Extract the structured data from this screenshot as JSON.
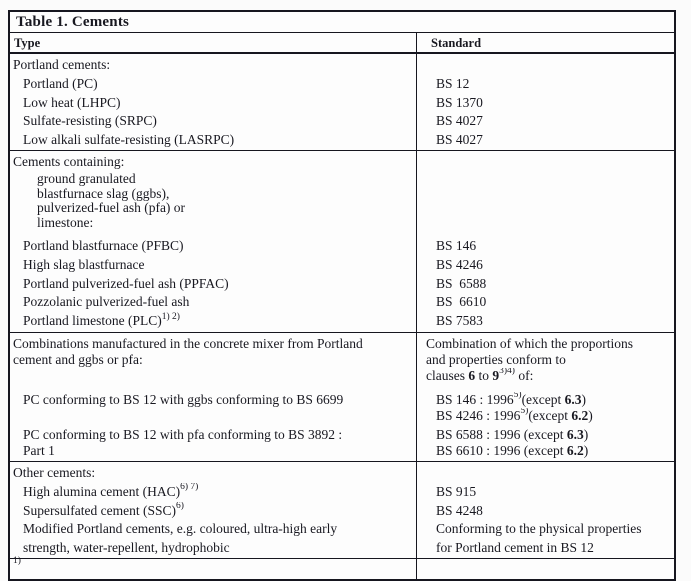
{
  "title": "Table 1. Cements",
  "columns": {
    "type": "Type",
    "standard": "Standard"
  },
  "footnote_marker": "1)",
  "sections": [
    {
      "name": "portland-cements",
      "lines": [
        {
          "indent": 0,
          "left": [
            {
              "t": "Portland cements:"
            }
          ],
          "right": []
        },
        {
          "indent": 1,
          "left": [
            {
              "t": "Portland (PC)"
            }
          ],
          "right": [
            {
              "t": "BS 12"
            }
          ]
        },
        {
          "indent": 1,
          "left": [
            {
              "t": "Low heat (LHPC)"
            }
          ],
          "right": [
            {
              "t": "BS 1370"
            }
          ]
        },
        {
          "indent": 1,
          "left": [
            {
              "t": "Sulfate-resisting (SRPC)"
            }
          ],
          "right": [
            {
              "t": "BS 4027"
            }
          ]
        },
        {
          "indent": 1,
          "left": [
            {
              "t": "Low alkali sulfate-resisting (LASRPC)"
            }
          ],
          "right": [
            {
              "t": "BS 4027"
            }
          ]
        }
      ]
    },
    {
      "name": "cements-containing",
      "lines": [
        {
          "indent": 0,
          "left": [
            {
              "t": "Cements containing:"
            }
          ],
          "right": []
        },
        {
          "indent": 2,
          "tight": true,
          "left": [
            {
              "t": "ground granulated"
            }
          ],
          "right": []
        },
        {
          "indent": 2,
          "tight": true,
          "left": [
            {
              "t": "blastfurnace slag (ggbs),"
            }
          ],
          "right": []
        },
        {
          "indent": 2,
          "tight": true,
          "left": [
            {
              "t": "pulverized-fuel ash (pfa) or"
            }
          ],
          "right": []
        },
        {
          "indent": 2,
          "tight": true,
          "left": [
            {
              "t": "limestone:"
            }
          ],
          "right": []
        },
        {
          "indent": 1,
          "gap": "md",
          "left": [
            {
              "t": "Portland blastfurnace (PFBC)"
            }
          ],
          "right": [
            {
              "t": "BS 146"
            }
          ]
        },
        {
          "indent": 1,
          "left": [
            {
              "t": "High slag blastfurnace"
            }
          ],
          "right": [
            {
              "t": "BS 4246"
            }
          ]
        },
        {
          "indent": 1,
          "left": [
            {
              "t": "Portland pulverized-fuel ash (PPFAC)"
            }
          ],
          "right": [
            {
              "t": "BS  6588"
            }
          ]
        },
        {
          "indent": 1,
          "left": [
            {
              "t": "Pozzolanic pulverized-fuel ash"
            }
          ],
          "right": [
            {
              "t": "BS  6610"
            }
          ]
        },
        {
          "indent": 1,
          "left": [
            {
              "t": "Portland limestone (PLC)"
            },
            {
              "t": "1) 2)",
              "sup": true
            }
          ],
          "right": [
            {
              "t": "BS 7583"
            }
          ]
        }
      ]
    },
    {
      "name": "combinations",
      "lines": [
        {
          "indent": 0,
          "left": [
            {
              "t": "Combinations manufactured in the concrete mixer from Portland"
            }
          ],
          "right": [
            {
              "t": "Combination of which the proportions"
            }
          ]
        },
        {
          "indent": 0,
          "left": [
            {
              "t": "cement and ggbs or pfa:"
            }
          ],
          "right": [
            {
              "t": "and properties conform to"
            }
          ]
        },
        {
          "indent": 0,
          "left": [],
          "right": [
            {
              "t": "clauses "
            },
            {
              "t": "6",
              "b": true
            },
            {
              "t": " to "
            },
            {
              "t": "9",
              "b": true
            },
            {
              "t": "3)4)",
              "sup": true
            },
            {
              "t": " of:"
            }
          ]
        },
        {
          "indent": 1,
          "gap": "lg",
          "left": [
            {
              "t": "PC conforming to BS 12 with ggbs conforming to BS 6699"
            }
          ],
          "right": [
            {
              "t": "BS 146 : 1996"
            },
            {
              "t": "5)",
              "sup": true
            },
            {
              "t": "(except "
            },
            {
              "t": "6.3",
              "b": true
            },
            {
              "t": ")"
            }
          ]
        },
        {
          "indent": 1,
          "left": [],
          "right": [
            {
              "t": "BS 4246 : 1996"
            },
            {
              "t": "5)",
              "sup": true
            },
            {
              "t": "(except "
            },
            {
              "t": "6.2",
              "b": true
            },
            {
              "t": ")"
            }
          ]
        },
        {
          "indent": 1,
          "gap": "sm",
          "left": [
            {
              "t": "PC conforming to BS 12 with pfa conforming to BS 3892 :"
            }
          ],
          "right": [
            {
              "t": "BS 6588 : 1996 (except "
            },
            {
              "t": "6.3",
              "b": true
            },
            {
              "t": ")"
            }
          ]
        },
        {
          "indent": 1,
          "left": [
            {
              "t": "Part 1"
            }
          ],
          "right": [
            {
              "t": "BS 6610 : 1996 (except "
            },
            {
              "t": "6.2",
              "b": true
            },
            {
              "t": ")"
            }
          ]
        }
      ]
    },
    {
      "name": "other-cements",
      "lines": [
        {
          "indent": 0,
          "left": [
            {
              "t": "Other cements:"
            }
          ],
          "right": []
        },
        {
          "indent": 1,
          "left": [
            {
              "t": "High alumina cement (HAC)"
            },
            {
              "t": "6) 7)",
              "sup": true
            }
          ],
          "right": [
            {
              "t": "BS 915"
            }
          ]
        },
        {
          "indent": 1,
          "left": [
            {
              "t": "Supersulfated cement (SSC)"
            },
            {
              "t": "6)",
              "sup": true
            }
          ],
          "right": [
            {
              "t": "BS 4248"
            }
          ]
        },
        {
          "indent": 1,
          "left": [
            {
              "t": "Modified Portland cements, e.g. coloured, ultra-high early"
            }
          ],
          "right": [
            {
              "t": "Conforming to the physical properties"
            }
          ]
        },
        {
          "indent": 1,
          "left": [
            {
              "t": "strength, water-repellent, hydrophobic"
            }
          ],
          "right": [
            {
              "t": "for Portland cement in BS 12"
            }
          ]
        }
      ]
    }
  ]
}
